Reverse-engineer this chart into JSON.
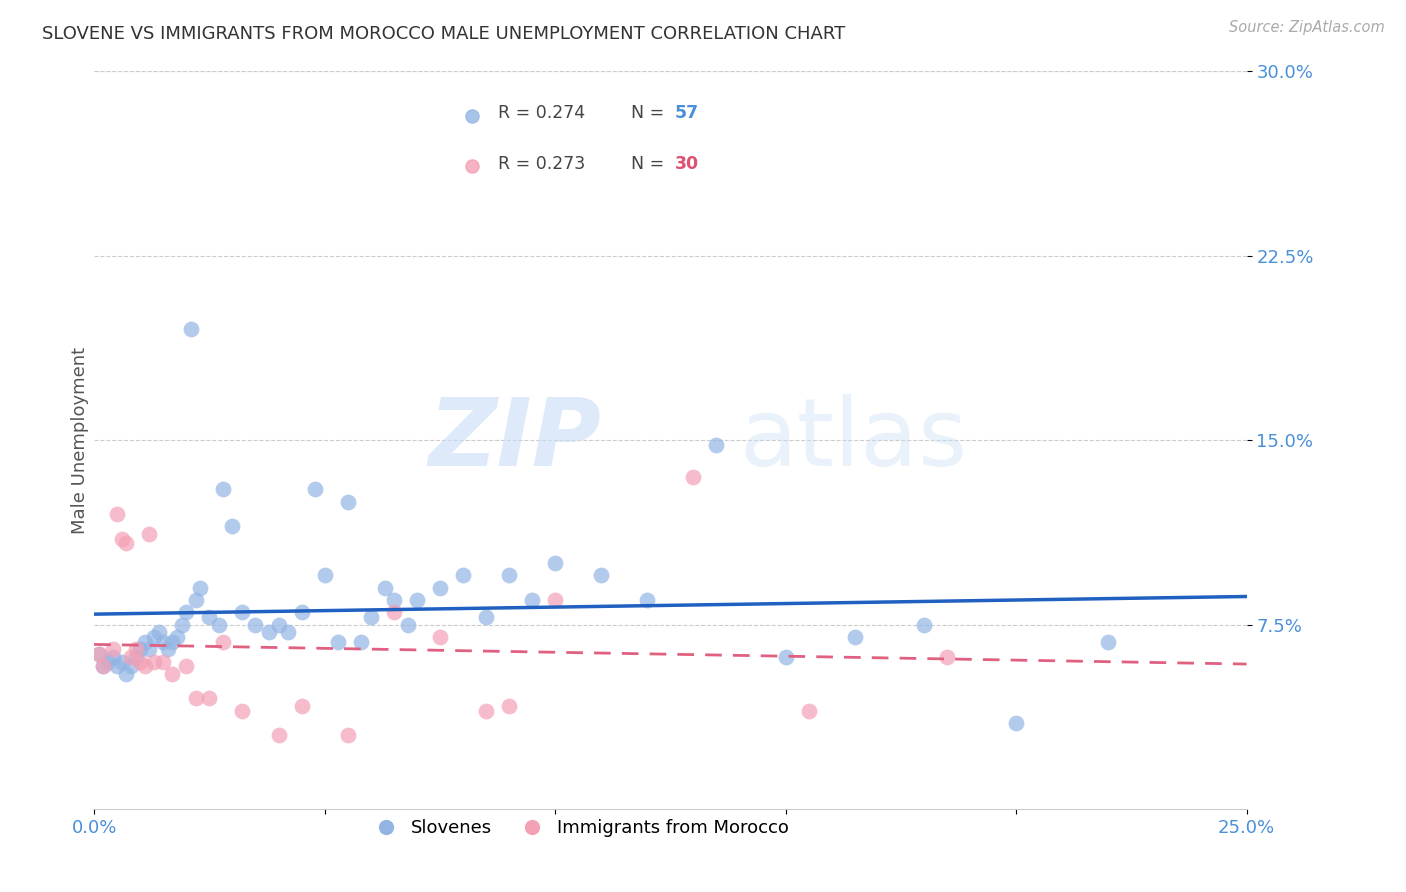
{
  "title": "SLOVENE VS IMMIGRANTS FROM MOROCCO MALE UNEMPLOYMENT CORRELATION CHART",
  "source": "Source: ZipAtlas.com",
  "ylabel": "Male Unemployment",
  "xlim": [
    0.0,
    0.25
  ],
  "ylim": [
    0.0,
    0.3
  ],
  "xticks": [
    0.0,
    0.05,
    0.1,
    0.15,
    0.2,
    0.25
  ],
  "yticks": [
    0.075,
    0.15,
    0.225,
    0.3
  ],
  "xtick_labels": [
    "0.0%",
    "",
    "",
    "",
    "",
    "25.0%"
  ],
  "ytick_labels": [
    "7.5%",
    "15.0%",
    "22.5%",
    "30.0%"
  ],
  "slovene_color": "#92b4e3",
  "morocco_color": "#f4a0b5",
  "trendline_slovene_color": "#2060c0",
  "trendline_morocco_color": "#e06080",
  "watermark_zip": "ZIP",
  "watermark_atlas": "atlas",
  "slovene_label": "Slovenes",
  "morocco_label": "Immigrants from Morocco",
  "slovene_x": [
    0.001,
    0.002,
    0.003,
    0.004,
    0.005,
    0.006,
    0.007,
    0.008,
    0.009,
    0.01,
    0.011,
    0.012,
    0.013,
    0.014,
    0.015,
    0.016,
    0.017,
    0.018,
    0.019,
    0.02,
    0.021,
    0.022,
    0.023,
    0.025,
    0.027,
    0.028,
    0.03,
    0.032,
    0.035,
    0.038,
    0.04,
    0.042,
    0.045,
    0.048,
    0.05,
    0.053,
    0.055,
    0.058,
    0.06,
    0.063,
    0.065,
    0.068,
    0.07,
    0.075,
    0.08,
    0.085,
    0.09,
    0.095,
    0.1,
    0.11,
    0.12,
    0.135,
    0.15,
    0.165,
    0.18,
    0.2,
    0.22
  ],
  "slovene_y": [
    0.063,
    0.058,
    0.06,
    0.062,
    0.058,
    0.06,
    0.055,
    0.058,
    0.062,
    0.065,
    0.068,
    0.065,
    0.07,
    0.072,
    0.068,
    0.065,
    0.068,
    0.07,
    0.075,
    0.08,
    0.195,
    0.085,
    0.09,
    0.078,
    0.075,
    0.13,
    0.115,
    0.08,
    0.075,
    0.072,
    0.075,
    0.072,
    0.08,
    0.13,
    0.095,
    0.068,
    0.125,
    0.068,
    0.078,
    0.09,
    0.085,
    0.075,
    0.085,
    0.09,
    0.095,
    0.078,
    0.095,
    0.085,
    0.1,
    0.095,
    0.085,
    0.148,
    0.062,
    0.07,
    0.075,
    0.035,
    0.068
  ],
  "morocco_x": [
    0.001,
    0.002,
    0.004,
    0.005,
    0.006,
    0.007,
    0.008,
    0.009,
    0.01,
    0.011,
    0.012,
    0.013,
    0.015,
    0.017,
    0.02,
    0.022,
    0.025,
    0.028,
    0.032,
    0.04,
    0.045,
    0.055,
    0.065,
    0.075,
    0.085,
    0.09,
    0.1,
    0.13,
    0.155,
    0.185
  ],
  "morocco_y": [
    0.063,
    0.058,
    0.065,
    0.12,
    0.11,
    0.108,
    0.062,
    0.065,
    0.06,
    0.058,
    0.112,
    0.06,
    0.06,
    0.055,
    0.058,
    0.045,
    0.045,
    0.068,
    0.04,
    0.03,
    0.042,
    0.03,
    0.08,
    0.07,
    0.04,
    0.042,
    0.085,
    0.135,
    0.04,
    0.062
  ]
}
